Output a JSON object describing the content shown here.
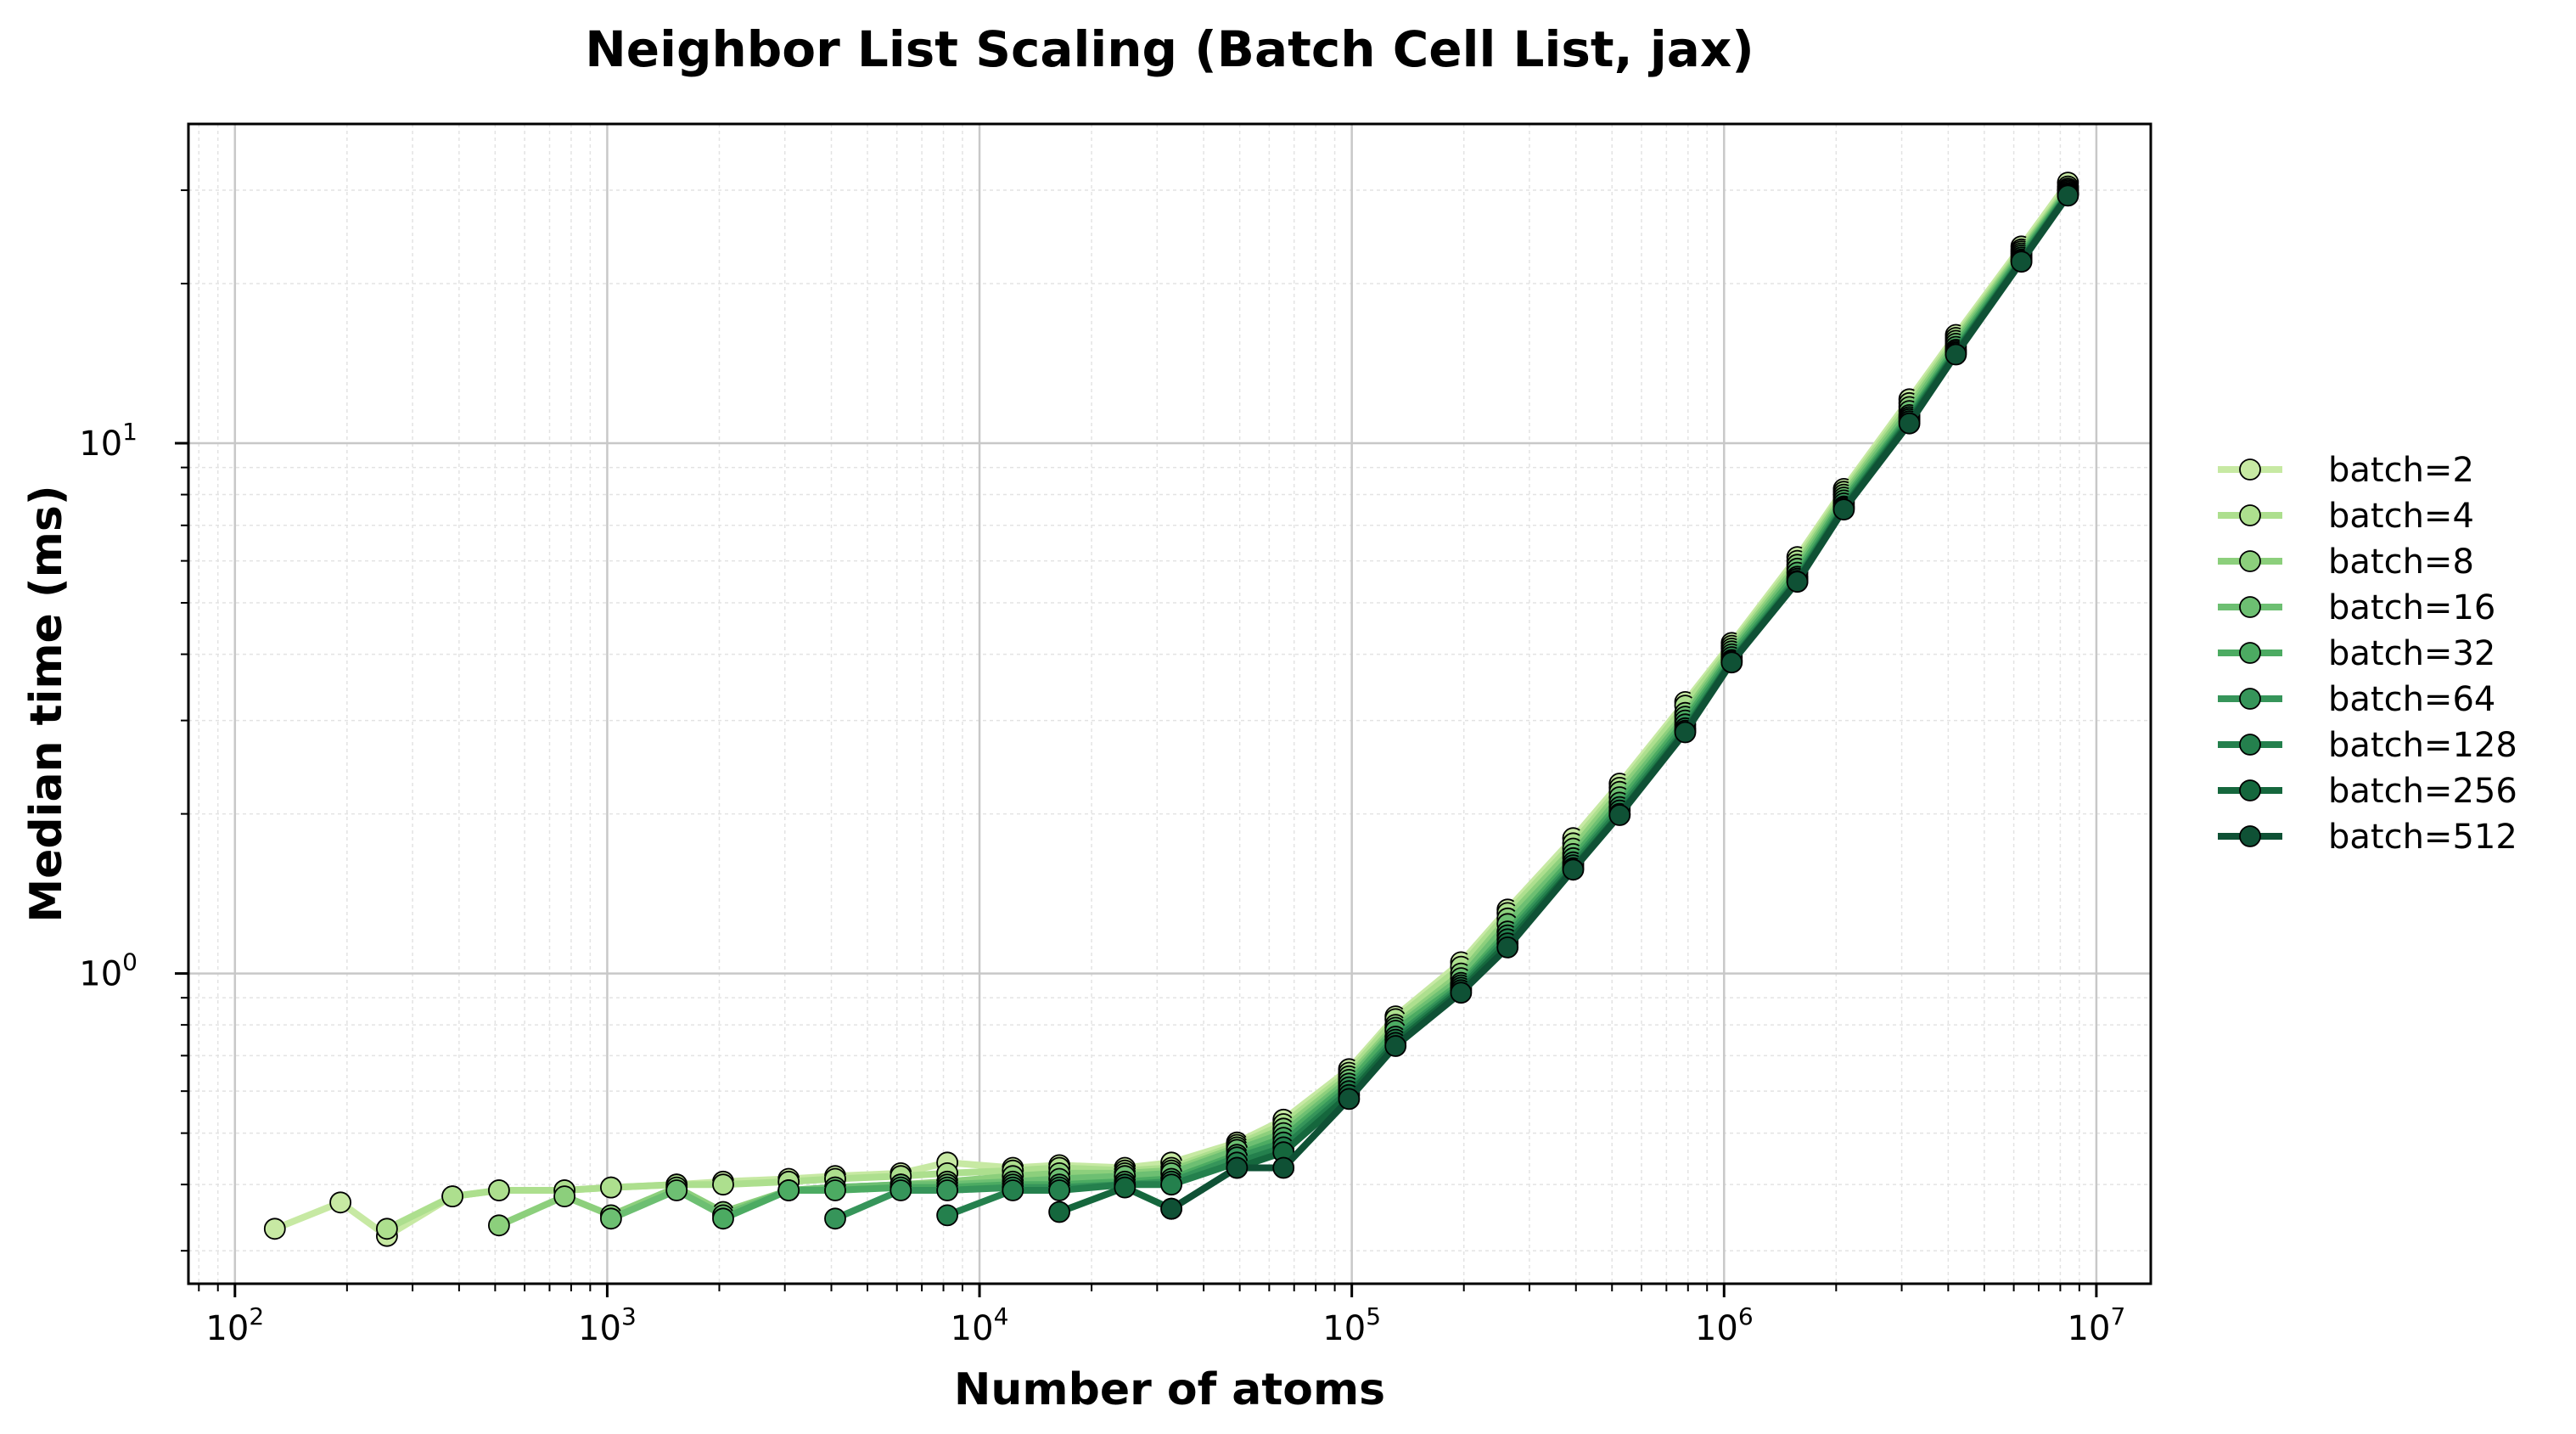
{
  "chart_data": {
    "type": "line",
    "title": "Neighbor List Scaling (Batch Cell List, jax)",
    "xlabel": "Number of atoms",
    "ylabel": "Median time (ms)",
    "xscale": "log",
    "yscale": "log",
    "xlim": [
      75,
      14000000
    ],
    "ylim": [
      0.26,
      40
    ],
    "x_ticks": [
      {
        "value": 100,
        "base": "10",
        "exp": "2"
      },
      {
        "value": 1000,
        "base": "10",
        "exp": "3"
      },
      {
        "value": 10000,
        "base": "10",
        "exp": "4"
      },
      {
        "value": 100000,
        "base": "10",
        "exp": "5"
      },
      {
        "value": 1000000,
        "base": "10",
        "exp": "6"
      },
      {
        "value": 10000000,
        "base": "10",
        "exp": "7"
      }
    ],
    "y_ticks": [
      {
        "value": 1,
        "base": "10",
        "exp": "0"
      },
      {
        "value": 10,
        "base": "10",
        "exp": "1"
      }
    ],
    "grid": true,
    "legend_position": "right-outside",
    "series": [
      {
        "name": "batch=2",
        "color": "#c7e9a3",
        "x": [
          128,
          192,
          256,
          384,
          512,
          768,
          1024,
          1536,
          2048,
          3072,
          4096,
          6144,
          8192,
          12288,
          16384,
          24576,
          32768,
          49152,
          65536,
          98304,
          131072,
          196608,
          262144,
          393216,
          524288,
          786432,
          1048576,
          1572864,
          2097152,
          3145728,
          4194304,
          6291456,
          8388608
        ],
        "y": [
          0.33,
          0.37,
          0.32,
          0.38,
          0.39,
          0.39,
          0.395,
          0.4,
          0.405,
          0.41,
          0.415,
          0.42,
          0.44,
          0.43,
          0.435,
          0.43,
          0.44,
          0.48,
          0.53,
          0.66,
          0.83,
          1.05,
          1.32,
          1.8,
          2.28,
          3.25,
          4.2,
          6.1,
          8.2,
          12.1,
          16.0,
          23.5,
          31.0
        ]
      },
      {
        "name": "batch=4",
        "color": "#addf8e",
        "x": [
          256,
          384,
          512,
          768,
          1024,
          1536,
          2048,
          3072,
          4096,
          6144,
          8192,
          12288,
          16384,
          24576,
          32768,
          49152,
          65536,
          98304,
          131072,
          196608,
          262144,
          393216,
          524288,
          786432,
          1048576,
          1572864,
          2097152,
          3145728,
          4194304,
          6291456,
          8388608
        ],
        "y": [
          0.33,
          0.38,
          0.39,
          0.39,
          0.395,
          0.4,
          0.4,
          0.405,
          0.41,
          0.415,
          0.42,
          0.425,
          0.43,
          0.425,
          0.43,
          0.475,
          0.52,
          0.65,
          0.82,
          1.03,
          1.3,
          1.76,
          2.24,
          3.2,
          4.15,
          6.0,
          8.1,
          11.9,
          15.8,
          23.2,
          30.5
        ]
      },
      {
        "name": "batch=8",
        "color": "#8ccf7c",
        "x": [
          512,
          768,
          1024,
          1536,
          2048,
          3072,
          4096,
          6144,
          8192,
          12288,
          16384,
          24576,
          32768,
          49152,
          65536,
          98304,
          131072,
          196608,
          262144,
          393216,
          524288,
          786432,
          1048576,
          1572864,
          2097152,
          3145728,
          4194304,
          6291456,
          8388608
        ],
        "y": [
          0.335,
          0.38,
          0.35,
          0.395,
          0.355,
          0.39,
          0.395,
          0.4,
          0.405,
          0.415,
          0.42,
          0.42,
          0.425,
          0.47,
          0.51,
          0.64,
          0.8,
          1.0,
          1.27,
          1.72,
          2.2,
          3.1,
          4.1,
          5.9,
          8.0,
          11.7,
          15.6,
          23.0,
          30.2
        ]
      },
      {
        "name": "batch=16",
        "color": "#6dbf72",
        "x": [
          1024,
          1536,
          2048,
          3072,
          4096,
          6144,
          8192,
          12288,
          16384,
          24576,
          32768,
          49152,
          65536,
          98304,
          131072,
          196608,
          262144,
          393216,
          524288,
          786432,
          1048576,
          1572864,
          2097152,
          3145728,
          4194304,
          6291456,
          8388608
        ],
        "y": [
          0.345,
          0.39,
          0.35,
          0.39,
          0.395,
          0.4,
          0.4,
          0.405,
          0.41,
          0.415,
          0.42,
          0.465,
          0.5,
          0.63,
          0.79,
          0.98,
          1.24,
          1.68,
          2.15,
          3.05,
          4.05,
          5.8,
          7.9,
          11.5,
          15.4,
          22.8,
          30.0
        ]
      },
      {
        "name": "batch=32",
        "color": "#4cab62",
        "x": [
          2048,
          3072,
          4096,
          6144,
          8192,
          12288,
          16384,
          24576,
          32768,
          49152,
          65536,
          98304,
          131072,
          196608,
          262144,
          393216,
          524288,
          786432,
          1048576,
          1572864,
          2097152,
          3145728,
          4194304,
          6291456,
          8388608
        ],
        "y": [
          0.345,
          0.39,
          0.39,
          0.395,
          0.395,
          0.4,
          0.4,
          0.405,
          0.41,
          0.455,
          0.49,
          0.62,
          0.78,
          0.96,
          1.2,
          1.65,
          2.1,
          3.0,
          4.0,
          5.7,
          7.8,
          11.3,
          15.2,
          22.6,
          29.8
        ]
      },
      {
        "name": "batch=64",
        "color": "#36955a",
        "x": [
          4096,
          6144,
          8192,
          12288,
          16384,
          24576,
          32768,
          49152,
          65536,
          98304,
          131072,
          196608,
          262144,
          393216,
          524288,
          786432,
          1048576,
          1572864,
          2097152,
          3145728,
          4194304,
          6291456,
          8388608
        ],
        "y": [
          0.345,
          0.39,
          0.39,
          0.395,
          0.395,
          0.4,
          0.405,
          0.45,
          0.48,
          0.61,
          0.76,
          0.95,
          1.18,
          1.62,
          2.06,
          2.95,
          3.95,
          5.6,
          7.7,
          11.2,
          15.0,
          22.4,
          29.6
        ]
      },
      {
        "name": "batch=128",
        "color": "#24804d",
        "x": [
          8192,
          12288,
          16384,
          24576,
          32768,
          49152,
          65536,
          98304,
          131072,
          196608,
          262144,
          393216,
          524288,
          786432,
          1048576,
          1572864,
          2097152,
          3145728,
          4194304,
          6291456,
          8388608
        ],
        "y": [
          0.35,
          0.39,
          0.39,
          0.4,
          0.4,
          0.44,
          0.47,
          0.6,
          0.75,
          0.94,
          1.16,
          1.6,
          2.03,
          2.9,
          3.9,
          5.55,
          7.6,
          11.1,
          14.9,
          22.2,
          29.5
        ]
      },
      {
        "name": "batch=256",
        "color": "#15673d",
        "x": [
          16384,
          24576,
          32768,
          49152,
          65536,
          98304,
          131072,
          196608,
          262144,
          393216,
          524288,
          786432,
          1048576,
          1572864,
          2097152,
          3145728,
          4194304,
          6291456,
          8388608
        ],
        "y": [
          0.355,
          0.395,
          0.36,
          0.43,
          0.46,
          0.59,
          0.74,
          0.93,
          1.14,
          1.58,
          2.0,
          2.87,
          3.88,
          5.5,
          7.55,
          11.0,
          14.8,
          22.1,
          29.4
        ]
      },
      {
        "name": "batch=512",
        "color": "#0f5135",
        "x": [
          32768,
          49152,
          65536,
          98304,
          131072,
          196608,
          262144,
          393216,
          524288,
          786432,
          1048576,
          1572864,
          2097152,
          3145728,
          4194304,
          6291456,
          8388608
        ],
        "y": [
          0.36,
          0.43,
          0.43,
          0.58,
          0.73,
          0.92,
          1.12,
          1.57,
          1.99,
          2.85,
          3.86,
          5.48,
          7.5,
          10.9,
          14.7,
          22.0,
          29.3
        ]
      }
    ]
  }
}
